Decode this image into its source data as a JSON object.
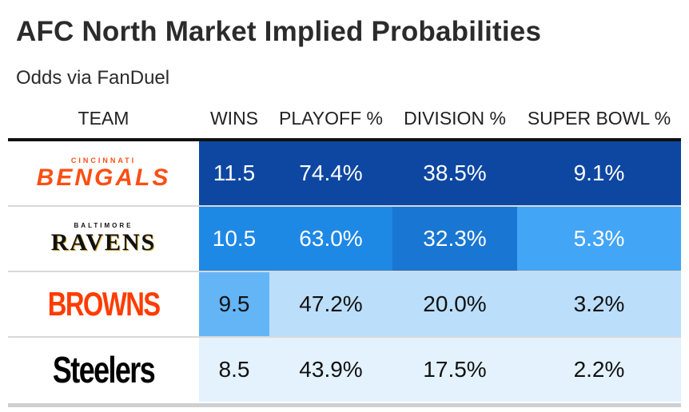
{
  "title": "AFC North Market Implied Probabilities",
  "subtitle": "Odds via FanDuel",
  "columns": [
    "TEAM",
    "WINS",
    "PLAYOFF %",
    "DIVISION %",
    "SUPER BOWL %"
  ],
  "chart_data": {
    "type": "table",
    "title": "AFC North Market Implied Probabilities",
    "subtitle": "Odds via FanDuel",
    "columns": [
      "TEAM",
      "WINS",
      "PLAYOFF %",
      "DIVISION %",
      "SUPER BOWL %"
    ],
    "rows": [
      {
        "logo_top": "CINCINNATI",
        "logo_main": "BENGALS",
        "logo_color": "#FB4F14",
        "wins": "11.5",
        "playoff": "74.4%",
        "division": "38.5%",
        "superbowl": "9.1%",
        "colors": [
          "#0D47A1",
          "#0D47A1",
          "#0D47A1",
          "#0D47A1"
        ],
        "text": [
          "#ffffff",
          "#ffffff",
          "#ffffff",
          "#ffffff"
        ]
      },
      {
        "logo_top": "BALTIMORE",
        "logo_main": "RAVENS",
        "logo_color": "#111111",
        "wins": "10.5",
        "playoff": "63.0%",
        "division": "32.3%",
        "superbowl": "5.3%",
        "colors": [
          "#1E88E5",
          "#1E88E5",
          "#1976D2",
          "#42A5F5"
        ],
        "text": [
          "#ffffff",
          "#ffffff",
          "#ffffff",
          "#ffffff"
        ]
      },
      {
        "logo_top": "",
        "logo_main": "BROWNS",
        "logo_color": "#FF3C00",
        "wins": "9.5",
        "playoff": "47.2%",
        "division": "20.0%",
        "superbowl": "3.2%",
        "colors": [
          "#64B5F6",
          "#BBDEFB",
          "#BBDEFB",
          "#BBDEFB"
        ],
        "text": [
          "#111111",
          "#111111",
          "#111111",
          "#111111"
        ]
      },
      {
        "logo_top": "",
        "logo_main": "Steelers",
        "logo_color": "#000000",
        "wins": "8.5",
        "playoff": "43.9%",
        "division": "17.5%",
        "superbowl": "2.2%",
        "colors": [
          "#E3F2FD",
          "#E3F2FD",
          "#E3F2FD",
          "#E3F2FD"
        ],
        "text": [
          "#111111",
          "#111111",
          "#111111",
          "#111111"
        ]
      }
    ]
  }
}
